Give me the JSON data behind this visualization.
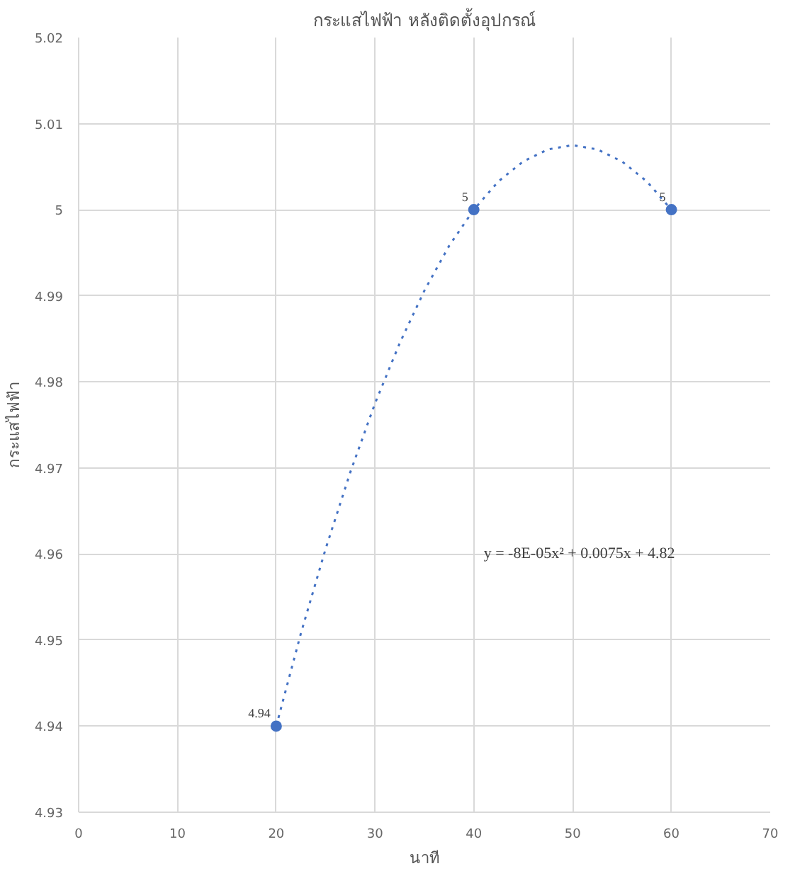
{
  "chart_data": {
    "type": "scatter",
    "title": "กระแสไฟฟ้า หลังติดตั้งอุปกรณ์",
    "xlabel": "นาที",
    "ylabel": "กระแสไฟฟ้า",
    "xlim": [
      0,
      70
    ],
    "xticks": [
      0,
      10,
      20,
      30,
      40,
      50,
      60,
      70
    ],
    "ylim": [
      4.93,
      5.02
    ],
    "yticks": [
      4.93,
      4.94,
      4.95,
      4.96,
      4.97,
      4.98,
      4.99,
      5,
      5.01,
      5.02
    ],
    "grid": true,
    "annotations": [
      "y = -8E-05x² + 0.0075x + 4.82"
    ],
    "series": [
      {
        "marker": "circle",
        "color": "#4472c4",
        "x": [
          20,
          40,
          60
        ],
        "values": [
          4.94,
          5,
          5
        ],
        "value_labels": [
          "4.94",
          "5",
          "5"
        ]
      },
      {
        "type": "line",
        "marker": "none",
        "line_style": "dotted",
        "color": "#4472c4",
        "x": [
          20,
          22.5,
          25,
          27.5,
          30,
          32.5,
          35,
          37.5,
          40,
          42.5,
          45,
          47.5,
          50,
          52.5,
          55,
          57.5,
          60
        ],
        "values": [
          4.94,
          4.9508,
          4.9606,
          4.9695,
          4.9775,
          4.9845,
          4.9906,
          4.9958,
          5.0,
          5.0033,
          5.0056,
          5.007,
          5.0075,
          5.007,
          5.0056,
          5.0033,
          5.0
        ]
      }
    ]
  }
}
